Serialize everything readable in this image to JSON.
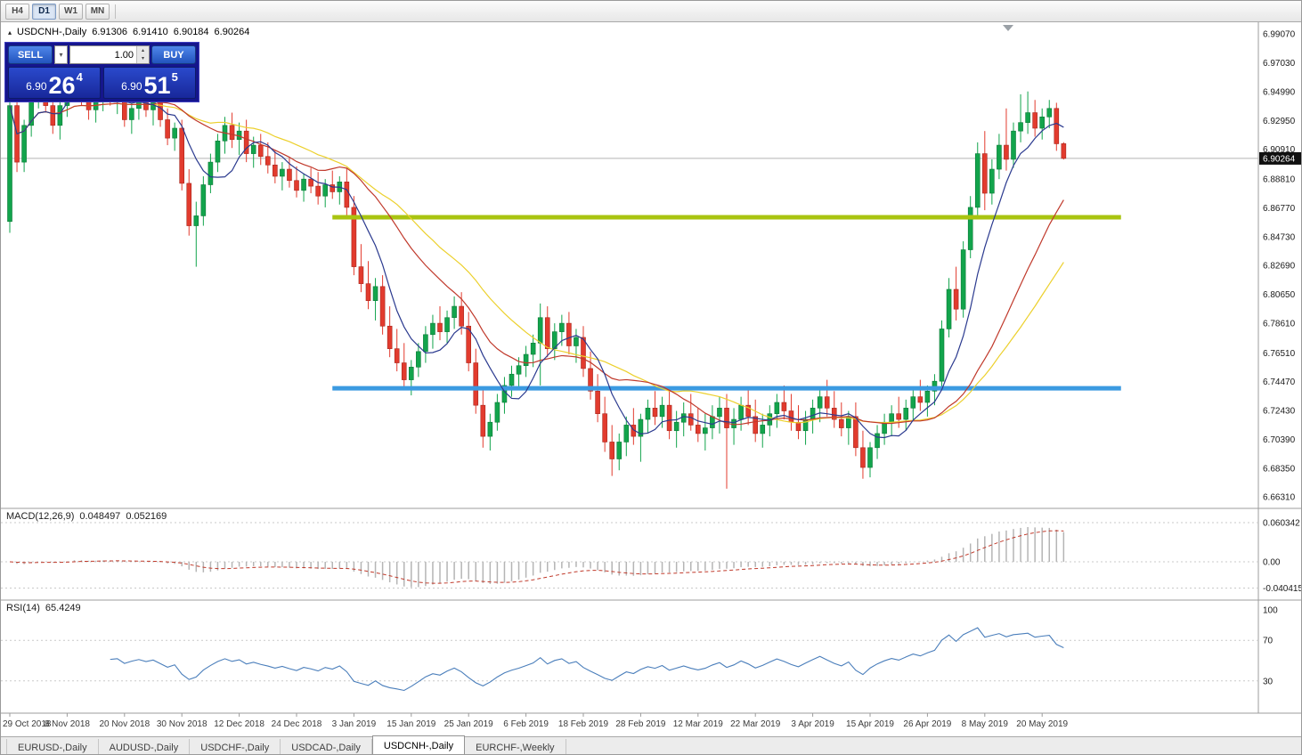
{
  "toolbar": {
    "timeframes": [
      {
        "label": "H4",
        "active": false
      },
      {
        "label": "D1",
        "active": true
      },
      {
        "label": "W1",
        "active": false
      },
      {
        "label": "MN",
        "active": false
      }
    ]
  },
  "icons": {
    "symbol_marker": "▴",
    "dropdown_arrow": "▾",
    "spin_up": "▴",
    "spin_down": "▾"
  },
  "chart_header": {
    "symbol": "USDCNH-,Daily",
    "open": "6.91306",
    "high": "6.91410",
    "low": "6.90184",
    "close": "6.90264"
  },
  "trade_panel": {
    "sell_label": "SELL",
    "buy_label": "BUY",
    "volume": "1.00",
    "bid": {
      "prefix": "6.90",
      "big": "26",
      "sup": "4"
    },
    "ask": {
      "prefix": "6.90",
      "big": "51",
      "sup": "5"
    }
  },
  "macd_panel": {
    "label": "MACD(12,26,9)",
    "value1": "0.048497",
    "value2": "0.052169"
  },
  "rsi_panel": {
    "label": "RSI(14)",
    "value": "65.4249"
  },
  "tabs": [
    {
      "label": "EURUSD-,Daily",
      "active": false
    },
    {
      "label": "AUDUSD-,Daily",
      "active": false
    },
    {
      "label": "USDCHF-,Daily",
      "active": false
    },
    {
      "label": "USDCAD-,Daily",
      "active": false
    },
    {
      "label": "USDCNH-,Daily",
      "active": true
    },
    {
      "label": "EURCHF-,Weekly",
      "active": false
    }
  ],
  "chart_data": {
    "type": "candlestick",
    "title": "USDCNH-,Daily",
    "symbol": "USDCNH",
    "timeframe": "Daily",
    "ylim": [
      6.6631,
      6.9907
    ],
    "price_axis_ticks": [
      "6.99070",
      "6.97030",
      "6.94990",
      "6.92950",
      "6.90910",
      "6.88810",
      "6.86770",
      "6.84730",
      "6.82690",
      "6.80650",
      "6.78610",
      "6.76510",
      "6.74470",
      "6.72430",
      "6.70390",
      "6.68350",
      "6.66310"
    ],
    "current_price": 6.90264,
    "current_price_label": "6.90264",
    "ohlc_current": {
      "open": 6.91306,
      "high": 6.9141,
      "low": 6.90184,
      "close": 6.90264
    },
    "bull_color": "#12a44c",
    "bear_color": "#e23b2e",
    "bull_border": "#0b7a36",
    "bear_border": "#a8271d",
    "date_ticks": [
      "29 Oct 2018",
      "8 Nov 2018",
      "20 Nov 2018",
      "30 Nov 2018",
      "12 Dec 2018",
      "24 Dec 2018",
      "3 Jan 2019",
      "15 Jan 2019",
      "25 Jan 2019",
      "6 Feb 2019",
      "18 Feb 2019",
      "28 Feb 2019",
      "12 Mar 2019",
      "22 Mar 2019",
      "3 Apr 2019",
      "15 Apr 2019",
      "26 Apr 2019",
      "8 May 2019",
      "20 May 2019"
    ],
    "bars_per_tick": 8,
    "moving_averages": [
      {
        "name": "fast",
        "period": 7,
        "color": "#2b3a8f"
      },
      {
        "name": "medium",
        "period": 20,
        "color": "#c0392b"
      },
      {
        "name": "slow",
        "period": 28,
        "color": "#ecd02c"
      }
    ],
    "hlines": [
      {
        "price": 6.861,
        "color": "#a9c410",
        "thickness": 5,
        "x1_bar": 45,
        "x2_bar": 155
      },
      {
        "price": 6.74,
        "color": "#3b9ae1",
        "thickness": 5,
        "x1_bar": 45,
        "x2_bar": 155
      }
    ],
    "indicators": [
      {
        "type": "MACD",
        "fast": 12,
        "slow": 26,
        "signal": 9,
        "current_macd": 0.048497,
        "current_signal": 0.052169,
        "axis_values": [
          0.060342,
          0,
          -0.040415
        ],
        "axis_labels": [
          "0.060342",
          "0.00",
          "-0.040415"
        ],
        "histogram_color": "#b5b5b5",
        "signal_color": "#c03a2b"
      },
      {
        "type": "RSI",
        "period": 14,
        "current": 65.4249,
        "axis_values": [
          100,
          70,
          30
        ],
        "axis_labels": [
          "100",
          "70",
          "30"
        ],
        "levels": [
          70,
          30
        ],
        "line_color": "#4a7ebb"
      }
    ],
    "candles": [
      [
        6.858,
        6.948,
        6.85,
        6.94
      ],
      [
        6.94,
        6.952,
        6.893,
        6.9
      ],
      [
        6.9,
        6.93,
        6.893,
        6.926
      ],
      [
        6.926,
        6.956,
        6.918,
        6.95
      ],
      [
        6.95,
        6.962,
        6.938,
        6.958
      ],
      [
        6.958,
        6.965,
        6.935,
        6.94
      ],
      [
        6.94,
        6.948,
        6.92,
        6.926
      ],
      [
        6.926,
        6.945,
        6.916,
        6.94
      ],
      [
        6.94,
        6.958,
        6.932,
        6.953
      ],
      [
        6.953,
        6.975,
        6.946,
        6.962
      ],
      [
        6.962,
        6.97,
        6.94,
        6.946
      ],
      [
        6.946,
        6.958,
        6.93,
        6.937
      ],
      [
        6.937,
        6.95,
        6.928,
        6.944
      ],
      [
        6.944,
        6.955,
        6.936,
        6.95
      ],
      [
        6.95,
        6.957,
        6.94,
        6.945
      ],
      [
        6.945,
        6.952,
        6.934,
        6.948
      ],
      [
        6.948,
        6.955,
        6.925,
        6.93
      ],
      [
        6.93,
        6.942,
        6.92,
        6.938
      ],
      [
        6.938,
        6.95,
        6.93,
        6.944
      ],
      [
        6.944,
        6.951,
        6.932,
        6.937
      ],
      [
        6.937,
        6.946,
        6.926,
        6.942
      ],
      [
        6.942,
        6.948,
        6.925,
        6.93
      ],
      [
        6.93,
        6.938,
        6.912,
        6.917
      ],
      [
        6.917,
        6.928,
        6.908,
        6.924
      ],
      [
        6.924,
        6.93,
        6.88,
        6.885
      ],
      [
        6.885,
        6.895,
        6.848,
        6.855
      ],
      [
        6.855,
        6.872,
        6.826,
        6.862
      ],
      [
        6.862,
        6.89,
        6.855,
        6.884
      ],
      [
        6.884,
        6.906,
        6.878,
        6.9
      ],
      [
        6.9,
        6.92,
        6.893,
        6.915
      ],
      [
        6.915,
        6.932,
        6.906,
        6.926
      ],
      [
        6.926,
        6.935,
        6.91,
        6.916
      ],
      [
        6.916,
        6.928,
        6.905,
        6.922
      ],
      [
        6.922,
        6.93,
        6.9,
        6.906
      ],
      [
        6.906,
        6.918,
        6.896,
        6.912
      ],
      [
        6.912,
        6.92,
        6.898,
        6.904
      ],
      [
        6.904,
        6.914,
        6.892,
        6.898
      ],
      [
        6.898,
        6.908,
        6.885,
        6.89
      ],
      [
        6.89,
        6.9,
        6.88,
        6.895
      ],
      [
        6.895,
        6.903,
        6.882,
        6.887
      ],
      [
        6.887,
        6.897,
        6.875,
        6.88
      ],
      [
        6.88,
        6.892,
        6.872,
        6.888
      ],
      [
        6.888,
        6.896,
        6.878,
        6.883
      ],
      [
        6.883,
        6.893,
        6.87,
        6.876
      ],
      [
        6.876,
        6.888,
        6.868,
        6.884
      ],
      [
        6.884,
        6.894,
        6.874,
        6.879
      ],
      [
        6.879,
        6.89,
        6.87,
        6.886
      ],
      [
        6.886,
        6.896,
        6.862,
        6.868
      ],
      [
        6.868,
        6.876,
        6.82,
        6.826
      ],
      [
        6.826,
        6.842,
        6.808,
        6.814
      ],
      [
        6.814,
        6.83,
        6.796,
        6.802
      ],
      [
        6.802,
        6.818,
        6.788,
        6.812
      ],
      [
        6.812,
        6.82,
        6.778,
        6.784
      ],
      [
        6.784,
        6.798,
        6.762,
        6.768
      ],
      [
        6.768,
        6.782,
        6.752,
        6.758
      ],
      [
        6.758,
        6.772,
        6.74,
        6.746
      ],
      [
        6.746,
        6.76,
        6.735,
        6.755
      ],
      [
        6.755,
        6.772,
        6.748,
        6.766
      ],
      [
        6.766,
        6.784,
        6.758,
        6.778
      ],
      [
        6.778,
        6.792,
        6.768,
        6.786
      ],
      [
        6.786,
        6.798,
        6.774,
        6.78
      ],
      [
        6.78,
        6.795,
        6.772,
        6.79
      ],
      [
        6.79,
        6.805,
        6.782,
        6.798
      ],
      [
        6.798,
        6.808,
        6.778,
        6.784
      ],
      [
        6.784,
        6.794,
        6.752,
        6.758
      ],
      [
        6.758,
        6.768,
        6.722,
        6.728
      ],
      [
        6.728,
        6.74,
        6.698,
        6.706
      ],
      [
        6.706,
        6.722,
        6.696,
        6.716
      ],
      [
        6.716,
        6.736,
        6.71,
        6.73
      ],
      [
        6.73,
        6.748,
        6.722,
        6.742
      ],
      [
        6.742,
        6.756,
        6.734,
        6.75
      ],
      [
        6.75,
        6.762,
        6.74,
        6.756
      ],
      [
        6.756,
        6.77,
        6.748,
        6.764
      ],
      [
        6.764,
        6.778,
        6.755,
        6.772
      ],
      [
        6.772,
        6.8,
        6.742,
        6.79
      ],
      [
        6.79,
        6.798,
        6.762,
        6.768
      ],
      [
        6.768,
        6.786,
        6.76,
        6.78
      ],
      [
        6.78,
        6.792,
        6.77,
        6.786
      ],
      [
        6.786,
        6.794,
        6.764,
        6.77
      ],
      [
        6.77,
        6.782,
        6.758,
        6.776
      ],
      [
        6.776,
        6.784,
        6.748,
        6.754
      ],
      [
        6.754,
        6.766,
        6.732,
        6.738
      ],
      [
        6.738,
        6.75,
        6.716,
        6.722
      ],
      [
        6.722,
        6.734,
        6.695,
        6.702
      ],
      [
        6.702,
        6.714,
        6.678,
        6.69
      ],
      [
        6.69,
        6.708,
        6.682,
        6.702
      ],
      [
        6.702,
        6.72,
        6.692,
        6.714
      ],
      [
        6.714,
        6.726,
        6.7,
        6.706
      ],
      [
        6.706,
        6.722,
        6.688,
        6.718
      ],
      [
        6.718,
        6.732,
        6.708,
        6.726
      ],
      [
        6.726,
        6.738,
        6.714,
        6.72
      ],
      [
        6.72,
        6.734,
        6.712,
        6.728
      ],
      [
        6.728,
        6.74,
        6.704,
        6.71
      ],
      [
        6.71,
        6.724,
        6.698,
        6.716
      ],
      [
        6.716,
        6.73,
        6.706,
        6.722
      ],
      [
        6.722,
        6.736,
        6.71,
        6.714
      ],
      [
        6.714,
        6.726,
        6.702,
        6.708
      ],
      [
        6.708,
        6.722,
        6.696,
        6.712
      ],
      [
        6.712,
        6.728,
        6.704,
        6.72
      ],
      [
        6.72,
        6.734,
        6.708,
        6.726
      ],
      [
        6.726,
        6.736,
        6.669,
        6.712
      ],
      [
        6.712,
        6.726,
        6.7,
        6.718
      ],
      [
        6.718,
        6.734,
        6.71,
        6.728
      ],
      [
        6.728,
        6.74,
        6.714,
        6.72
      ],
      [
        6.72,
        6.732,
        6.702,
        6.708
      ],
      [
        6.708,
        6.722,
        6.698,
        6.714
      ],
      [
        6.714,
        6.728,
        6.706,
        6.722
      ],
      [
        6.722,
        6.736,
        6.712,
        6.73
      ],
      [
        6.73,
        6.742,
        6.718,
        6.724
      ],
      [
        6.724,
        6.736,
        6.71,
        6.716
      ],
      [
        6.716,
        6.728,
        6.704,
        6.71
      ],
      [
        6.71,
        6.724,
        6.7,
        6.718
      ],
      [
        6.718,
        6.732,
        6.708,
        6.726
      ],
      [
        6.726,
        6.74,
        6.716,
        6.734
      ],
      [
        6.734,
        6.746,
        6.72,
        6.726
      ],
      [
        6.726,
        6.738,
        6.712,
        6.718
      ],
      [
        6.718,
        6.73,
        6.706,
        6.712
      ],
      [
        6.712,
        6.724,
        6.7,
        6.72
      ],
      [
        6.72,
        6.73,
        6.692,
        6.698
      ],
      [
        6.698,
        6.71,
        6.676,
        6.684
      ],
      [
        6.684,
        6.702,
        6.677,
        6.698
      ],
      [
        6.698,
        6.714,
        6.69,
        6.708
      ],
      [
        6.708,
        6.722,
        6.7,
        6.716
      ],
      [
        6.716,
        6.728,
        6.706,
        6.722
      ],
      [
        6.722,
        6.734,
        6.712,
        6.718
      ],
      [
        6.718,
        6.732,
        6.71,
        6.726
      ],
      [
        6.726,
        6.74,
        6.718,
        6.734
      ],
      [
        6.734,
        6.746,
        6.724,
        6.73
      ],
      [
        6.73,
        6.742,
        6.72,
        6.738
      ],
      [
        6.738,
        6.75,
        6.728,
        6.745
      ],
      [
        6.745,
        6.788,
        6.74,
        6.782
      ],
      [
        6.782,
        6.818,
        6.776,
        6.81
      ],
      [
        6.81,
        6.826,
        6.788,
        6.796
      ],
      [
        6.796,
        6.844,
        6.79,
        6.838
      ],
      [
        6.838,
        6.876,
        6.832,
        6.868
      ],
      [
        6.868,
        6.914,
        6.86,
        6.906
      ],
      [
        6.906,
        6.922,
        6.866,
        6.878
      ],
      [
        6.878,
        6.902,
        6.87,
        6.895
      ],
      [
        6.895,
        6.92,
        6.888,
        6.912
      ],
      [
        6.912,
        6.938,
        6.894,
        6.902
      ],
      [
        6.902,
        6.928,
        6.896,
        6.922
      ],
      [
        6.922,
        6.948,
        6.914,
        6.928
      ],
      [
        6.928,
        6.95,
        6.92,
        6.935
      ],
      [
        6.935,
        6.944,
        6.918,
        6.924
      ],
      [
        6.924,
        6.938,
        6.916,
        6.932
      ],
      [
        6.932,
        6.944,
        6.924,
        6.938
      ],
      [
        6.938,
        6.942,
        6.908,
        6.913
      ],
      [
        6.91306,
        6.9141,
        6.90184,
        6.90264
      ]
    ]
  }
}
